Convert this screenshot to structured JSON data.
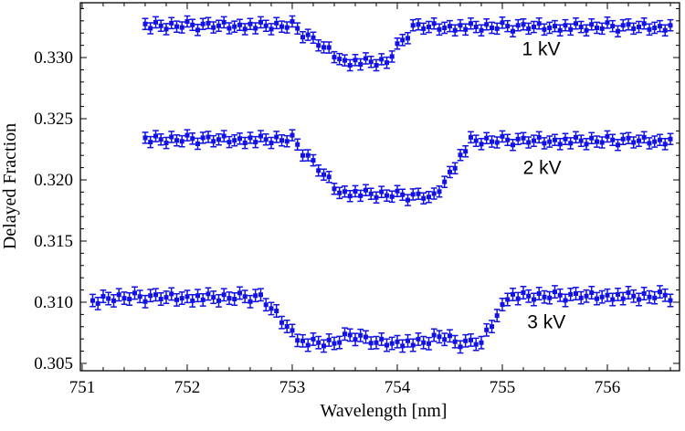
{
  "figure": {
    "background": "#ffffff",
    "frame_color": "#000000",
    "point_color": "#1212e6"
  },
  "chart_data": {
    "type": "scatter",
    "title": "",
    "xlabel": "Wavelength [nm]",
    "ylabel": "Delayed Fraction",
    "xlim": [
      750.983,
      756.687
    ],
    "ylim": [
      0.3044,
      0.33448
    ],
    "x_major_ticks": [
      751,
      752,
      753,
      754,
      755,
      756
    ],
    "x_minor_step": 0.2,
    "y_major_ticks": [
      0.305,
      0.31,
      0.315,
      0.32,
      0.325,
      0.33
    ],
    "y_minor_step": 0.001,
    "grid": false,
    "legend_position": "inline-annotations",
    "marker": "filled-square-with-error-bars",
    "annotations": [
      {
        "text": "1 kV",
        "x": 755.37,
        "y": 0.3307
      },
      {
        "text": "2 kV",
        "x": 755.38,
        "y": 0.321
      },
      {
        "text": "3 kV",
        "x": 755.42,
        "y": 0.3084
      }
    ],
    "series": [
      {
        "name": "1 kV",
        "x_start": 751.6,
        "x_step": 0.05,
        "err": 0.00045,
        "values": [
          0.33274,
          0.33239,
          0.33288,
          0.3326,
          0.33232,
          0.33281,
          0.33253,
          0.33246,
          0.33295,
          0.33267,
          0.33225,
          0.33274,
          0.33281,
          0.33246,
          0.3326,
          0.33288,
          0.33239,
          0.33253,
          0.33267,
          0.33232,
          0.33274,
          0.33239,
          0.33288,
          0.3326,
          0.33232,
          0.33281,
          0.33253,
          0.33246,
          0.33295,
          0.33238,
          0.33166,
          0.33186,
          0.33163,
          0.33099,
          0.33083,
          0.33082,
          0.33003,
          0.32988,
          0.32977,
          0.32937,
          0.32979,
          0.32944,
          0.32993,
          0.32965,
          0.32937,
          0.32986,
          0.32958,
          0.33008,
          0.33114,
          0.33143,
          0.33158,
          0.33264,
          0.33271,
          0.33236,
          0.3325,
          0.33278,
          0.33229,
          0.33243,
          0.33257,
          0.33222,
          0.33264,
          0.33229,
          0.33278,
          0.3325,
          0.33222,
          0.33271,
          0.33243,
          0.33236,
          0.33285,
          0.33257,
          0.33215,
          0.33264,
          0.33271,
          0.33236,
          0.3325,
          0.33278,
          0.33229,
          0.33243,
          0.33257,
          0.33222,
          0.33264,
          0.33229,
          0.33278,
          0.3325,
          0.33222,
          0.33271,
          0.33243,
          0.33236,
          0.33285,
          0.33257,
          0.33215,
          0.33264,
          0.33271,
          0.33236,
          0.3325,
          0.33278,
          0.33229,
          0.33243,
          0.33257,
          0.33222,
          0.33264
        ]
      },
      {
        "name": "2 kV",
        "x_start": 751.6,
        "x_step": 0.05,
        "err": 0.00045,
        "values": [
          0.32344,
          0.32309,
          0.32358,
          0.3233,
          0.32302,
          0.32351,
          0.32323,
          0.32316,
          0.32365,
          0.32337,
          0.32295,
          0.32344,
          0.32351,
          0.32316,
          0.3233,
          0.32358,
          0.32309,
          0.32323,
          0.32337,
          0.32302,
          0.32344,
          0.32309,
          0.32358,
          0.3233,
          0.32302,
          0.32351,
          0.32323,
          0.32316,
          0.32365,
          0.32289,
          0.32199,
          0.32201,
          0.3216,
          0.32077,
          0.32043,
          0.32024,
          0.31927,
          0.31893,
          0.31905,
          0.31867,
          0.31907,
          0.3187,
          0.31916,
          0.31886,
          0.31856,
          0.31902,
          0.31872,
          0.31863,
          0.31909,
          0.31879,
          0.31835,
          0.31881,
          0.31886,
          0.31849,
          0.3186,
          0.31888,
          0.31905,
          0.31984,
          0.32064,
          0.32095,
          0.32203,
          0.32233,
          0.32348,
          0.3232,
          0.32292,
          0.32341,
          0.32313,
          0.32306,
          0.32355,
          0.32327,
          0.32285,
          0.32334,
          0.32341,
          0.32306,
          0.3232,
          0.32348,
          0.32299,
          0.32313,
          0.32327,
          0.32292,
          0.32334,
          0.32299,
          0.32348,
          0.3232,
          0.32292,
          0.32341,
          0.32313,
          0.32306,
          0.32355,
          0.32327,
          0.32285,
          0.32334,
          0.32341,
          0.32306,
          0.3232,
          0.32348,
          0.32299,
          0.32313,
          0.32327,
          0.32292,
          0.32334
        ]
      },
      {
        "name": "3 kV",
        "x_start": 751.1,
        "x_step": 0.05,
        "err": 0.0005,
        "values": [
          0.31014,
          0.30989,
          0.31048,
          0.3103,
          0.31012,
          0.31061,
          0.31033,
          0.31026,
          0.31075,
          0.31047,
          0.31005,
          0.31054,
          0.31061,
          0.31026,
          0.3104,
          0.31068,
          0.31019,
          0.31033,
          0.31047,
          0.31012,
          0.31054,
          0.31019,
          0.31068,
          0.3104,
          0.31012,
          0.31061,
          0.31033,
          0.31026,
          0.31075,
          0.31047,
          0.31005,
          0.31054,
          0.31061,
          0.3098,
          0.30948,
          0.30929,
          0.30834,
          0.30802,
          0.30769,
          0.30688,
          0.30684,
          0.30649,
          0.30698,
          0.3067,
          0.30642,
          0.30691,
          0.30663,
          0.30671,
          0.3074,
          0.30732,
          0.30695,
          0.30729,
          0.30716,
          0.30666,
          0.3067,
          0.30698,
          0.30649,
          0.30663,
          0.30677,
          0.30642,
          0.30684,
          0.30649,
          0.30698,
          0.3067,
          0.30662,
          0.30731,
          0.30718,
          0.30696,
          0.30725,
          0.30677,
          0.30635,
          0.30684,
          0.30691,
          0.30656,
          0.3067,
          0.30774,
          0.30801,
          0.30891,
          0.30981,
          0.31022,
          0.31064,
          0.31029,
          0.31078,
          0.3105,
          0.31022,
          0.31071,
          0.31043,
          0.31036,
          0.31085,
          0.31057,
          0.31015,
          0.31064,
          0.31071,
          0.31036,
          0.3105,
          0.31078,
          0.31029,
          0.31043,
          0.31057,
          0.31022,
          0.31064,
          0.31029,
          0.31078,
          0.3105,
          0.31022,
          0.31071,
          0.31043,
          0.31036,
          0.31085,
          0.31057,
          0.31015
        ]
      }
    ]
  }
}
